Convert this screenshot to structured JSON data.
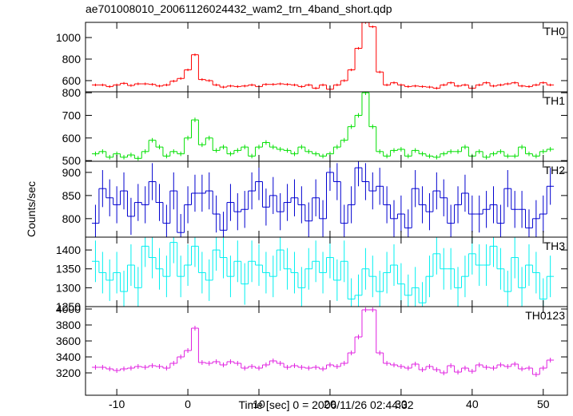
{
  "chart_data": {
    "type": "step",
    "title": "ae701008010_20061126024432_wam2_trn_4band_short.qdp",
    "xlabel": "Time [sec] 0 = 2006/11/26 02:44:32",
    "ylabel": "Counts/sec",
    "xlim": [
      -14.4,
      53.4
    ],
    "xticks": [
      -10,
      0,
      10,
      20,
      30,
      40,
      50
    ],
    "x": [
      -13,
      -12,
      -11,
      -10,
      -9,
      -8,
      -7,
      -6,
      -5,
      -4,
      -3,
      -2,
      -1,
      0,
      1,
      2,
      3,
      4,
      5,
      6,
      7,
      8,
      9,
      10,
      11,
      12,
      13,
      14,
      15,
      16,
      17,
      18,
      19,
      20,
      21,
      22,
      23,
      24,
      25,
      26,
      27,
      28,
      29,
      30,
      31,
      32,
      33,
      34,
      35,
      36,
      37,
      38,
      39,
      40,
      41,
      42,
      43,
      44,
      45,
      46,
      47,
      48,
      49,
      50,
      51
    ],
    "series": [
      {
        "name": "TH0",
        "color": "#ff0000",
        "error": 12,
        "ylim": [
          496,
          1141
        ],
        "yticks": [
          600,
          800,
          1000
        ],
        "values": [
          560,
          560,
          545,
          560,
          575,
          555,
          570,
          570,
          565,
          550,
          560,
          595,
          620,
          700,
          840,
          610,
          600,
          560,
          540,
          550,
          545,
          550,
          560,
          545,
          565,
          565,
          570,
          565,
          560,
          545,
          560,
          530,
          560,
          520,
          560,
          600,
          700,
          900,
          1140,
          1100,
          680,
          560,
          580,
          560,
          545,
          550,
          545,
          540,
          530,
          560,
          580,
          550,
          560,
          530,
          560,
          580,
          550,
          560,
          570,
          580,
          550,
          545,
          560,
          580,
          560
        ]
      },
      {
        "name": "TH1",
        "color": "#00e000",
        "error": 10,
        "ylim": [
          497,
          804
        ],
        "yticks": [
          500,
          600,
          700,
          800
        ],
        "values": [
          530,
          540,
          515,
          530,
          515,
          525,
          510,
          540,
          590,
          560,
          520,
          540,
          530,
          600,
          680,
          570,
          600,
          545,
          560,
          530,
          545,
          560,
          520,
          560,
          580,
          560,
          550,
          545,
          530,
          560,
          540,
          530,
          520,
          530,
          560,
          590,
          650,
          700,
          800,
          650,
          540,
          520,
          545,
          550,
          520,
          545,
          530,
          520,
          515,
          530,
          540,
          540,
          560,
          520,
          540,
          515,
          530,
          540,
          520,
          520,
          560,
          530,
          520,
          540,
          550
        ]
      },
      {
        "name": "TH2",
        "color": "#0000d0",
        "error": 40,
        "ylim": [
          760,
          924
        ],
        "yticks": [
          800,
          850,
          900
        ],
        "values": [
          790,
          865,
          845,
          830,
          860,
          805,
          835,
          830,
          880,
          835,
          790,
          860,
          770,
          830,
          855,
          855,
          860,
          810,
          775,
          835,
          815,
          820,
          860,
          880,
          825,
          850,
          815,
          835,
          845,
          830,
          795,
          845,
          800,
          900,
          880,
          790,
          830,
          910,
          880,
          860,
          870,
          830,
          800,
          810,
          780,
          865,
          830,
          815,
          860,
          845,
          790,
          830,
          855,
          810,
          810,
          820,
          830,
          790,
          865,
          820,
          820,
          780,
          800,
          810,
          870
        ]
      },
      {
        "name": "TH3",
        "color": "#00f0f0",
        "error": 55,
        "ylim": [
          1250,
          1434
        ],
        "yticks": [
          1250,
          1300,
          1350,
          1400
        ],
        "values": [
          1370,
          1340,
          1320,
          1340,
          1290,
          1360,
          1300,
          1410,
          1380,
          1350,
          1330,
          1420,
          1330,
          1360,
          1410,
          1340,
          1320,
          1400,
          1380,
          1330,
          1370,
          1310,
          1370,
          1360,
          1340,
          1330,
          1400,
          1350,
          1340,
          1300,
          1350,
          1370,
          1340,
          1380,
          1320,
          1370,
          1270,
          1280,
          1350,
          1330,
          1290,
          1340,
          1360,
          1310,
          1280,
          1300,
          1260,
          1330,
          1390,
          1350,
          1350,
          1300,
          1330,
          1390,
          1360,
          1360,
          1410,
          1350,
          1290,
          1380,
          1300,
          1360,
          1340,
          1270,
          1330
        ]
      },
      {
        "name": "TH0123",
        "color": "#e020e0",
        "error": 30,
        "ylim": [
          2920,
          4030
        ],
        "yticks": [
          3200,
          3400,
          3600,
          3800,
          4000
        ],
        "values": [
          3270,
          3270,
          3250,
          3230,
          3250,
          3260,
          3280,
          3270,
          3290,
          3280,
          3260,
          3320,
          3400,
          3480,
          3760,
          3330,
          3320,
          3340,
          3300,
          3340,
          3320,
          3260,
          3280,
          3260,
          3300,
          3350,
          3320,
          3270,
          3290,
          3270,
          3260,
          3270,
          3250,
          3300,
          3280,
          3320,
          3450,
          3650,
          3990,
          3990,
          3450,
          3320,
          3300,
          3280,
          3260,
          3310,
          3240,
          3280,
          3240,
          3200,
          3290,
          3210,
          3260,
          3220,
          3300,
          3270,
          3260,
          3300,
          3280,
          3310,
          3250,
          3260,
          3180,
          3260,
          3360
        ]
      }
    ]
  }
}
